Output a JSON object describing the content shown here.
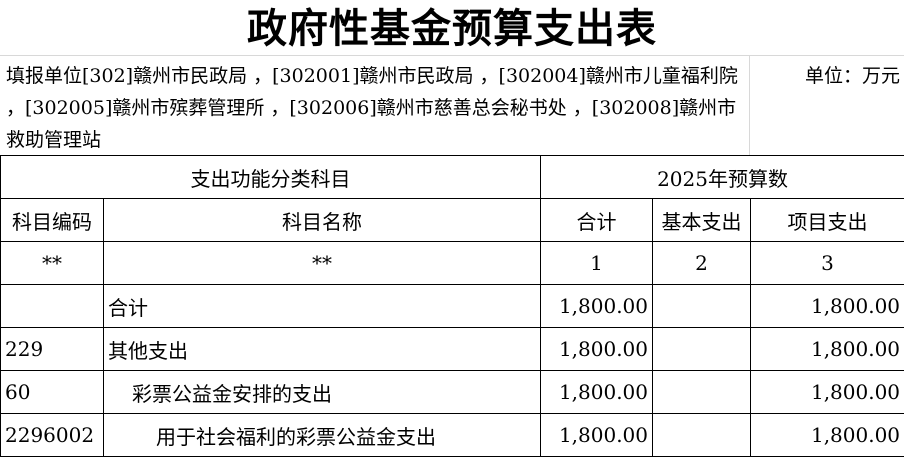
{
  "title": "政府性基金预算支出表",
  "info": "填报单位[302]赣州市民政局 ，[302001]赣州市民政局 ，[302004]赣州市儿童福利院 ，[302005]赣州市殡葬管理所 ，[302006]赣州市慈善总会秘书处 ，[302008]赣州市救助管理站",
  "unit": "单位：万元",
  "header": {
    "group1": "支出功能分类科目",
    "group2": "2025年预算数",
    "code": "科目编码",
    "name": "科目名称",
    "total": "合计",
    "basic": "基本支出",
    "project": "项目支出"
  },
  "index_row": [
    "**",
    "**",
    "1",
    "2",
    "3"
  ],
  "rows": [
    {
      "code": "",
      "name": "合计",
      "total": "1,800.00",
      "basic": "",
      "project": "1,800.00",
      "indent": 0
    },
    {
      "code": "229",
      "name": "其他支出",
      "total": "1,800.00",
      "basic": "",
      "project": "1,800.00",
      "indent": 0
    },
    {
      "code": "60",
      "name": "彩票公益金安排的支出",
      "total": "1,800.00",
      "basic": "",
      "project": "1,800.00",
      "indent": 1
    },
    {
      "code": "2296002",
      "name": "用于社会福利的彩票公益金支出",
      "total": "1,800.00",
      "basic": "",
      "project": "1,800.00",
      "indent": 2
    }
  ]
}
